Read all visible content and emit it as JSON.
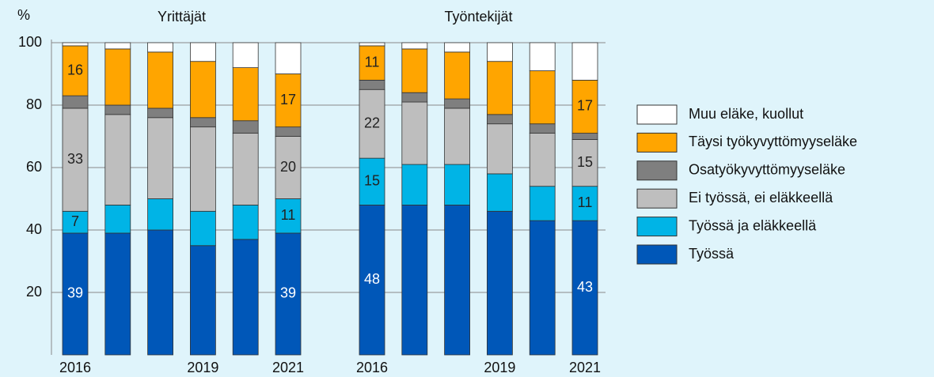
{
  "chart_data": {
    "type": "stacked_bar",
    "y_unit": "%",
    "groups": [
      "Yrittäjät",
      "Työntekijät"
    ],
    "categories": [
      "2016",
      null,
      null,
      "2019",
      null,
      "2021",
      "2016",
      null,
      null,
      "2019",
      null,
      "2021"
    ],
    "ylim": [
      0,
      100
    ],
    "yticks": [
      20,
      40,
      60,
      80,
      100
    ],
    "grid": true,
    "legend": "right",
    "labeled_bars": [
      0,
      5,
      6,
      11
    ],
    "series": [
      {
        "name": "Työssä",
        "color": "#0057b8",
        "show_labels": true,
        "values": [
          39,
          39,
          40,
          35,
          37,
          39,
          48,
          48,
          48,
          46,
          43,
          43
        ]
      },
      {
        "name": "Työssä ja eläkkeellä",
        "color": "#00b4e6",
        "show_labels": true,
        "values": [
          7,
          9,
          10,
          11,
          11,
          11,
          15,
          13,
          13,
          12,
          11,
          11
        ]
      },
      {
        "name": "Ei työssä, ei eläkkeellä",
        "color": "#bebebe",
        "show_labels": true,
        "values": [
          33,
          29,
          26,
          27,
          23,
          20,
          22,
          20,
          18,
          16,
          17,
          15
        ]
      },
      {
        "name": "Osatyökyvyttömyyseläke",
        "color": "#7f7f7f",
        "show_labels": false,
        "values": [
          4,
          3,
          3,
          3,
          4,
          3,
          3,
          3,
          3,
          3,
          3,
          2
        ]
      },
      {
        "name": "Täysi työkyvyttömyyseläke",
        "color": "#ffa500",
        "show_labels": true,
        "values": [
          16,
          18,
          18,
          18,
          17,
          17,
          11,
          14,
          15,
          17,
          17,
          17
        ]
      },
      {
        "name": "Muu eläke, kuollut",
        "color": "#ffffff",
        "show_labels": false,
        "values": [
          1,
          2,
          3,
          6,
          8,
          10,
          1,
          2,
          3,
          6,
          9,
          12
        ]
      }
    ]
  }
}
